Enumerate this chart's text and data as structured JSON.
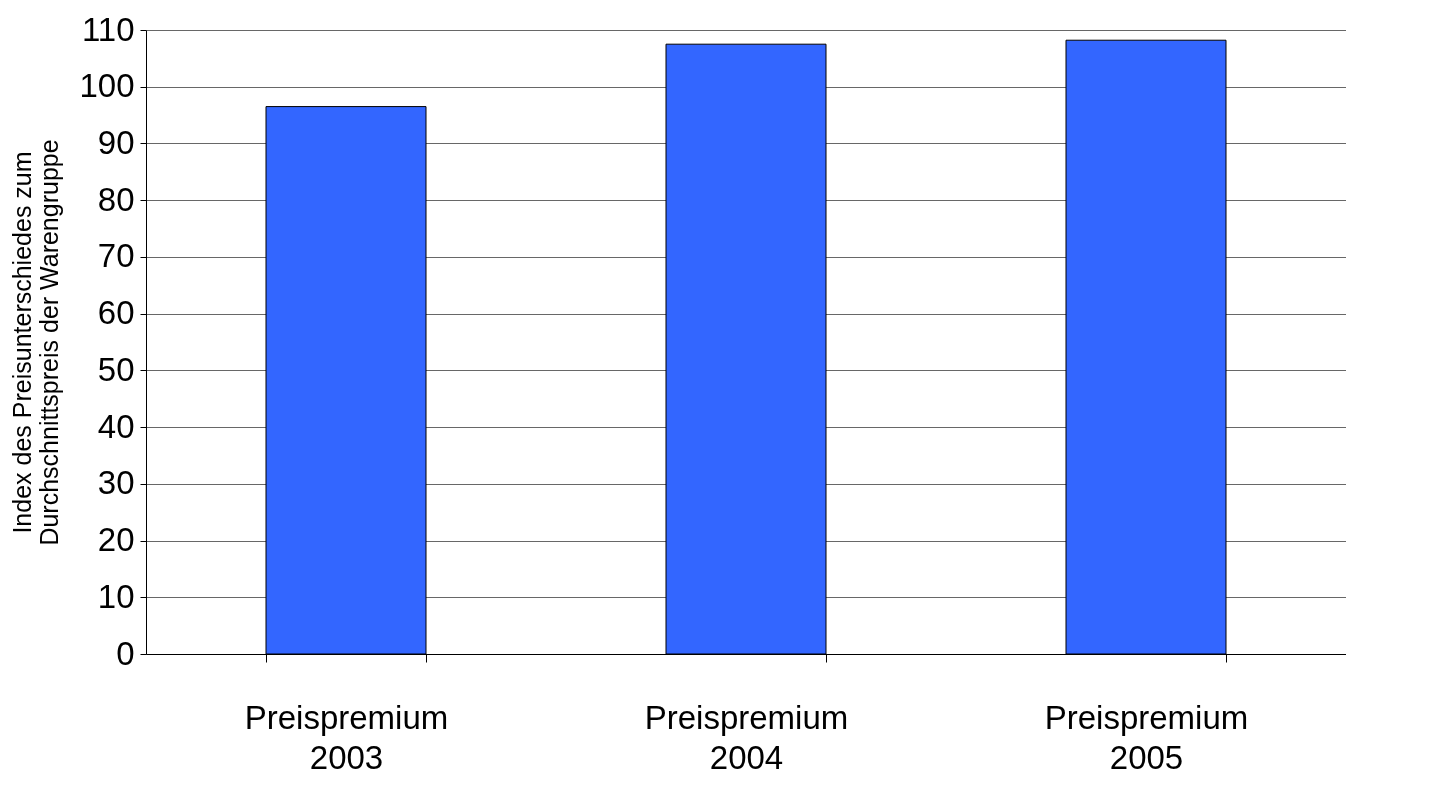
{
  "chart_data": {
    "type": "bar",
    "ylabel": "Index des Preisunterschiedes zum Durchschnittspreis der Warengruppe",
    "categories": [
      "Preispremium 2003",
      "Preispremium 2004",
      "Preispremium 2005"
    ],
    "values": [
      96.5,
      107.5,
      108.2
    ],
    "color": "#3366ff",
    "ylim": [
      0,
      110
    ],
    "yticks": [
      0,
      10,
      20,
      30,
      40,
      50,
      60,
      70,
      80,
      90,
      100,
      110
    ],
    "grid": "y"
  }
}
